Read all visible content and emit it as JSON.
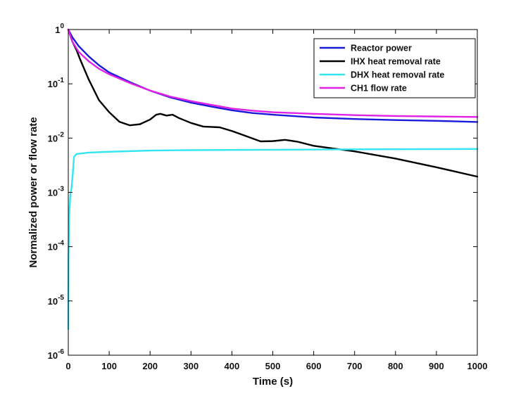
{
  "chart_data": {
    "type": "line",
    "xlabel": "Time (s)",
    "ylabel": "Normalized power or flow rate",
    "xlim": [
      0,
      1000
    ],
    "ylim": [
      1e-06,
      1
    ],
    "yscale": "log",
    "grid": false,
    "legend_position": "top-right",
    "x_ticks": [
      {
        "value": 0,
        "label": "0"
      },
      {
        "value": 100,
        "label": "100"
      },
      {
        "value": 200,
        "label": "200"
      },
      {
        "value": 300,
        "label": "300"
      },
      {
        "value": 400,
        "label": "400"
      },
      {
        "value": 500,
        "label": "500"
      },
      {
        "value": 600,
        "label": "600"
      },
      {
        "value": 700,
        "label": "700"
      },
      {
        "value": 800,
        "label": "800"
      },
      {
        "value": 900,
        "label": "900"
      },
      {
        "value": 1000,
        "label": "1000"
      }
    ],
    "y_ticks": [
      {
        "exp": 0,
        "base": "1",
        "sup": "0"
      },
      {
        "exp": -1,
        "base": "10",
        "sup": "-1"
      },
      {
        "exp": -2,
        "base": "10",
        "sup": "-2"
      },
      {
        "exp": -3,
        "base": "10",
        "sup": "-3"
      },
      {
        "exp": -4,
        "base": "10",
        "sup": "-4"
      },
      {
        "exp": -5,
        "base": "10",
        "sup": "-5"
      },
      {
        "exp": -6,
        "base": "10",
        "sup": "-6"
      }
    ],
    "series": [
      {
        "name": "Reactor power",
        "color": "#1a1adb",
        "points": [
          [
            0,
            1.0
          ],
          [
            10,
            0.72
          ],
          [
            25,
            0.5
          ],
          [
            50,
            0.32
          ],
          [
            75,
            0.22
          ],
          [
            100,
            0.162
          ],
          [
            150,
            0.108
          ],
          [
            200,
            0.075
          ],
          [
            250,
            0.056
          ],
          [
            300,
            0.045
          ],
          [
            350,
            0.038
          ],
          [
            400,
            0.0325
          ],
          [
            450,
            0.029
          ],
          [
            500,
            0.027
          ],
          [
            600,
            0.024
          ],
          [
            700,
            0.0225
          ],
          [
            800,
            0.0215
          ],
          [
            900,
            0.0208
          ],
          [
            1000,
            0.0198
          ]
        ]
      },
      {
        "name": "IHX heat removal rate",
        "color": "#000000",
        "points": [
          [
            0,
            1.0
          ],
          [
            10,
            0.6
          ],
          [
            20,
            0.42
          ],
          [
            30,
            0.27
          ],
          [
            50,
            0.12
          ],
          [
            75,
            0.05
          ],
          [
            100,
            0.03
          ],
          [
            125,
            0.02
          ],
          [
            150,
            0.0172
          ],
          [
            175,
            0.018
          ],
          [
            200,
            0.022
          ],
          [
            215,
            0.027
          ],
          [
            225,
            0.028
          ],
          [
            240,
            0.026
          ],
          [
            255,
            0.027
          ],
          [
            270,
            0.0235
          ],
          [
            300,
            0.019
          ],
          [
            330,
            0.0163
          ],
          [
            370,
            0.0158
          ],
          [
            400,
            0.0135
          ],
          [
            430,
            0.0112
          ],
          [
            470,
            0.0087
          ],
          [
            500,
            0.0088
          ],
          [
            530,
            0.0093
          ],
          [
            560,
            0.0086
          ],
          [
            600,
            0.0072
          ],
          [
            650,
            0.0064
          ],
          [
            700,
            0.0057
          ],
          [
            800,
            0.0042
          ],
          [
            900,
            0.0029
          ],
          [
            1000,
            0.00195
          ]
        ]
      },
      {
        "name": "DHX heat removal rate",
        "color": "#33e6f2",
        "points": [
          [
            0,
            3e-06
          ],
          [
            0.5,
            6e-05
          ],
          [
            2,
            0.00035
          ],
          [
            5,
            0.0009
          ],
          [
            8,
            0.0012
          ],
          [
            11,
            0.0022
          ],
          [
            14,
            0.0045
          ],
          [
            20,
            0.0051
          ],
          [
            50,
            0.0054
          ],
          [
            100,
            0.0056
          ],
          [
            200,
            0.0059
          ],
          [
            300,
            0.006
          ],
          [
            500,
            0.0061
          ],
          [
            700,
            0.0062
          ],
          [
            1000,
            0.0063
          ]
        ]
      },
      {
        "name": "CH1 flow rate",
        "color": "#e021e6",
        "points": [
          [
            0,
            1.0
          ],
          [
            10,
            0.6
          ],
          [
            25,
            0.39
          ],
          [
            50,
            0.26
          ],
          [
            75,
            0.19
          ],
          [
            100,
            0.15
          ],
          [
            150,
            0.104
          ],
          [
            200,
            0.075
          ],
          [
            250,
            0.058
          ],
          [
            300,
            0.048
          ],
          [
            350,
            0.041
          ],
          [
            400,
            0.035
          ],
          [
            450,
            0.032
          ],
          [
            500,
            0.03
          ],
          [
            600,
            0.028
          ],
          [
            700,
            0.0265
          ],
          [
            800,
            0.0255
          ],
          [
            900,
            0.025
          ],
          [
            1000,
            0.0245
          ]
        ]
      }
    ]
  }
}
